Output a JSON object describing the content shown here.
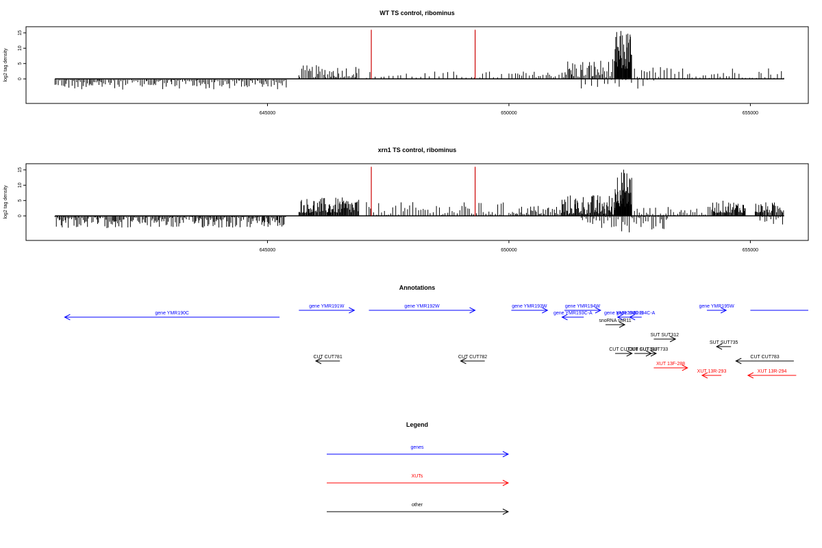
{
  "chart_data": [
    {
      "type": "bar",
      "title": "WT TS control, ribominus",
      "xlabel": "",
      "ylabel": "log2 tag density",
      "xlim": [
        640000,
        656200
      ],
      "ylim": [
        -8,
        17
      ],
      "x_ticks": [
        645000,
        650000,
        655000
      ],
      "y_ticks": [
        0,
        5,
        10,
        15
      ],
      "grid": false,
      "markers": [
        647150,
        649300
      ],
      "segments": [
        {
          "x": [
            640600,
            645400
          ],
          "range": [
            -3.5,
            -0.3
          ],
          "step": 30
        },
        {
          "x": [
            645650,
            646900
          ],
          "range": [
            0.5,
            4.5
          ],
          "step": 30
        },
        {
          "x": [
            647050,
            649900
          ],
          "range": [
            0.3,
            2.5
          ],
          "step": 90
        },
        {
          "x": [
            650000,
            651100
          ],
          "range": [
            0.5,
            2.5
          ],
          "step": 55
        },
        {
          "x": [
            651100,
            652200
          ],
          "range": [
            0.5,
            6.5
          ],
          "step": 25
        },
        {
          "x": [
            652200,
            652550
          ],
          "range": [
            3,
            16
          ],
          "step": 10
        },
        {
          "x": [
            652600,
            655700
          ],
          "range": [
            0.3,
            4
          ],
          "step": 65
        },
        {
          "x": [
            651500,
            653000
          ],
          "range": [
            -4,
            -0.3
          ],
          "step": 110
        }
      ]
    },
    {
      "type": "bar",
      "title": "xrn1 TS control, ribominus",
      "xlabel": "",
      "ylabel": "log2 tag density",
      "xlim": [
        640000,
        656200
      ],
      "ylim": [
        -8,
        17
      ],
      "x_ticks": [
        645000,
        650000,
        655000
      ],
      "y_ticks": [
        0,
        5,
        10,
        15
      ],
      "grid": false,
      "markers": [
        647150,
        649300
      ],
      "segments": [
        {
          "x": [
            640600,
            645400
          ],
          "range": [
            -4,
            -0.3
          ],
          "step": 22
        },
        {
          "x": [
            645650,
            646900
          ],
          "range": [
            1,
            6
          ],
          "step": 15
        },
        {
          "x": [
            647050,
            649900
          ],
          "range": [
            0.3,
            4.5
          ],
          "step": 50
        },
        {
          "x": [
            650000,
            651100
          ],
          "range": [
            0.5,
            3.5
          ],
          "step": 30
        },
        {
          "x": [
            651100,
            652200
          ],
          "range": [
            0.5,
            7
          ],
          "step": 15
        },
        {
          "x": [
            652200,
            652550
          ],
          "range": [
            3,
            15.5
          ],
          "step": 8
        },
        {
          "x": [
            652600,
            654200
          ],
          "range": [
            0.3,
            3
          ],
          "step": 45
        },
        {
          "x": [
            654200,
            654900
          ],
          "range": [
            1,
            5
          ],
          "step": 15
        },
        {
          "x": [
            655100,
            655700
          ],
          "range": [
            1,
            4.5
          ],
          "step": 18
        },
        {
          "x": [
            651500,
            653300
          ],
          "range": [
            -5.5,
            -0.3
          ],
          "step": 35
        },
        {
          "x": [
            655200,
            655700
          ],
          "range": [
            -3,
            -0.3
          ],
          "step": 40
        }
      ]
    },
    {
      "type": "annotation",
      "title": "Annotations",
      "xlim": [
        640000,
        656200
      ],
      "features": [
        {
          "label": "gene YMR190C",
          "start": 640800,
          "end": 645250,
          "strand": "-",
          "kind": "gene",
          "row": 1
        },
        {
          "label": "gene YMR191W",
          "start": 645650,
          "end": 646800,
          "strand": "+",
          "kind": "gene",
          "row": 0
        },
        {
          "label": "gene YMR192W",
          "start": 647100,
          "end": 649300,
          "strand": "+",
          "kind": "gene",
          "row": 0
        },
        {
          "label": "gene YMR193W",
          "start": 650050,
          "end": 650800,
          "strand": "+",
          "kind": "gene",
          "row": 0
        },
        {
          "label": "gene YMR194W",
          "start": 651150,
          "end": 651900,
          "strand": "+",
          "kind": "gene",
          "row": 0
        },
        {
          "label": "gene YMR193C-A",
          "start": 651100,
          "end": 651550,
          "strand": "-",
          "kind": "gene",
          "row": 1
        },
        {
          "label": "gene YMR194C-B",
          "start": 652250,
          "end": 652500,
          "strand": "-",
          "kind": "gene",
          "row": 1
        },
        {
          "label": "gene YMR194C-A",
          "start": 652500,
          "end": 652750,
          "strand": "-",
          "kind": "gene",
          "row": 1
        },
        {
          "label": "gene YMR195W",
          "start": 654100,
          "end": 654500,
          "strand": "+",
          "kind": "gene",
          "row": 0
        },
        {
          "label": "",
          "start": 655000,
          "end": 656200,
          "strand": "+",
          "kind": "gene",
          "row": 0
        },
        {
          "label": "snoRNA snR11",
          "start": 652000,
          "end": 652400,
          "strand": "+",
          "kind": "other",
          "row": 2
        },
        {
          "label": "SUT SUT312",
          "start": 653000,
          "end": 653450,
          "strand": "+",
          "kind": "other",
          "row": 3
        },
        {
          "label": "SUT SUT735",
          "start": 654300,
          "end": 654600,
          "strand": "-",
          "kind": "other",
          "row": 4
        },
        {
          "label": "CUT CUT308",
          "start": 652200,
          "end": 652550,
          "strand": "+",
          "kind": "other",
          "row": 5
        },
        {
          "label": "CUT CUT310",
          "start": 652600,
          "end": 652950,
          "strand": "+",
          "kind": "other",
          "row": 5
        },
        {
          "label": "SUT SUT733",
          "start": 652950,
          "end": 653050,
          "strand": "+",
          "kind": "other",
          "row": 5
        },
        {
          "label": "CUT CUT781",
          "start": 646000,
          "end": 646500,
          "strand": "-",
          "kind": "other",
          "row": 6
        },
        {
          "label": "CUT CUT782",
          "start": 649000,
          "end": 649500,
          "strand": "-",
          "kind": "other",
          "row": 6
        },
        {
          "label": "CUT CUT783",
          "start": 654700,
          "end": 655900,
          "strand": "-",
          "kind": "other",
          "row": 6
        },
        {
          "label": "XUT 13F-288",
          "start": 653000,
          "end": 653700,
          "strand": "+",
          "kind": "xut",
          "row": 7
        },
        {
          "label": "XUT 13R-293",
          "start": 654000,
          "end": 654400,
          "strand": "-",
          "kind": "xut",
          "row": 8
        },
        {
          "label": "XUT 13R-294",
          "start": 654950,
          "end": 655950,
          "strand": "-",
          "kind": "xut",
          "row": 8
        }
      ]
    },
    {
      "type": "legend",
      "title": "Legend",
      "entries": [
        {
          "label": "genes",
          "color": "#0000ff"
        },
        {
          "label": "XUTs",
          "color": "#ff0000"
        },
        {
          "label": "other",
          "color": "#000000"
        }
      ]
    }
  ],
  "colors": {
    "gene": "#0000ff",
    "xut": "#ff0000",
    "other": "#000000",
    "marker": "#cc0000",
    "bar": "#000000"
  }
}
